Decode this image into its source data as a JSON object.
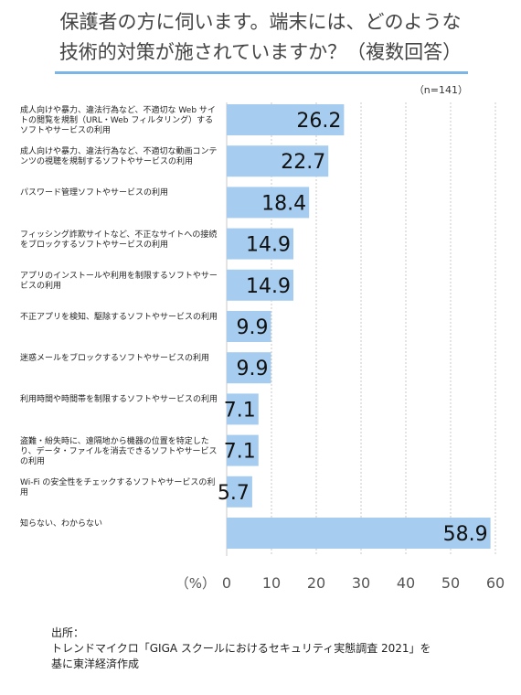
{
  "title_lines": [
    "保護者の方に伺います。端末には、どのような",
    "技術的対策が施されていますか？（複数回答）"
  ],
  "n_label": "（n=141）",
  "source_lines": [
    "出所：",
    "トレンドマイクロ「GIGA スクールにおけるセキュリティ実態調査 2021」を",
    "基に東洋経済作成"
  ],
  "colors": {
    "bar": "#a6cdef",
    "title_rule": "#7cb6e6",
    "grid": "#bdbdbd"
  },
  "chart_data": {
    "type": "bar",
    "orientation": "horizontal",
    "categories": [
      "成人向けや暴力、違法行為など、不適切な Web サイトの閲覧を規制（URL・Web フィルタリング）するソフトやサービスの利用",
      "成人向けや暴力、違法行為など、不適切な動画コンテンツの視聴を規制するソフトやサービスの利用",
      "パスワード管理ソフトやサービスの利用",
      "フィッシング詐欺サイトなど、不正なサイトへの接続をブロックするソフトやサービスの利用",
      "アプリのインストールや利用を制限するソフトやサービスの利用",
      "不正アプリを検知、駆除するソフトやサービスの利用",
      "迷惑メールをブロックするソフトやサービスの利用",
      "利用時間や時間帯を制限するソフトやサービスの利用",
      "盗難・紛失時に、遠隔地から機器の位置を特定したり、データ・ファイルを消去できるソフトやサービスの利用",
      "Wi-Fi の安全性をチェックするソフトやサービスの利用",
      "知らない、わからない"
    ],
    "values": [
      26.2,
      22.7,
      18.4,
      14.9,
      14.9,
      9.9,
      9.9,
      7.1,
      7.1,
      5.7,
      58.9
    ],
    "value_labels": [
      "26.2",
      "22.7",
      "18.4",
      "14.9",
      "14.9",
      "9.9",
      "9.9",
      "7.1",
      "7.1",
      "5.7",
      "58.9"
    ],
    "xlim": [
      0,
      60
    ],
    "x_ticks": [
      0,
      10,
      20,
      30,
      40,
      50,
      60
    ],
    "tick_labels": [
      "0",
      "10",
      "20",
      "30",
      "40",
      "50",
      "60"
    ],
    "xlabel": "（%）",
    "grid": true
  }
}
